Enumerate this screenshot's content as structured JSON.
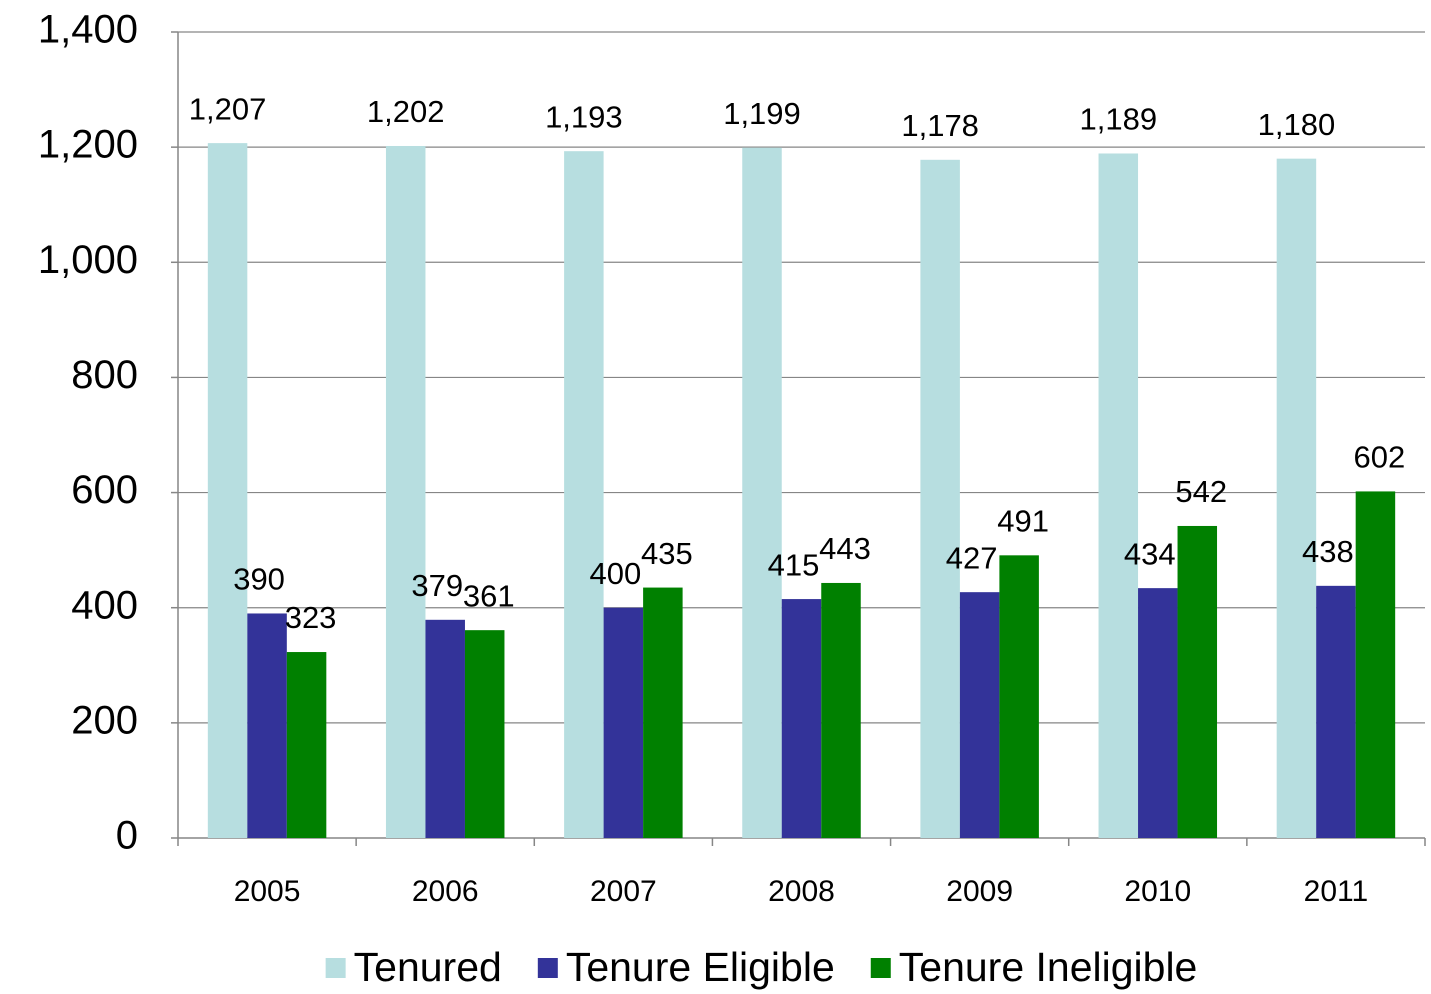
{
  "chart_data": {
    "type": "bar",
    "categories": [
      "2005",
      "2006",
      "2007",
      "2008",
      "2009",
      "2010",
      "2011"
    ],
    "series": [
      {
        "name": "Tenured",
        "color": "#b7dee0",
        "values": [
          1207,
          1202,
          1193,
          1199,
          1178,
          1189,
          1180
        ],
        "value_labels": [
          "1,207",
          "1,202",
          "1,193",
          "1,199",
          "1,178",
          "1,189",
          "1,180"
        ]
      },
      {
        "name": "Tenure Eligible",
        "color": "#333399",
        "values": [
          390,
          379,
          400,
          415,
          427,
          434,
          438
        ]
      },
      {
        "name": "Tenure Ineligible",
        "color": "#008000",
        "values": [
          323,
          361,
          435,
          443,
          491,
          542,
          602
        ]
      }
    ],
    "ylim": [
      0,
      1400
    ],
    "yticks": [
      0,
      200,
      400,
      600,
      800,
      {
        "value": 1000,
        "label": "1,000"
      },
      {
        "value": 1200,
        "label": "1,200"
      },
      {
        "value": 1400,
        "label": "1,400"
      }
    ],
    "grid": true,
    "legend": "bottom"
  }
}
